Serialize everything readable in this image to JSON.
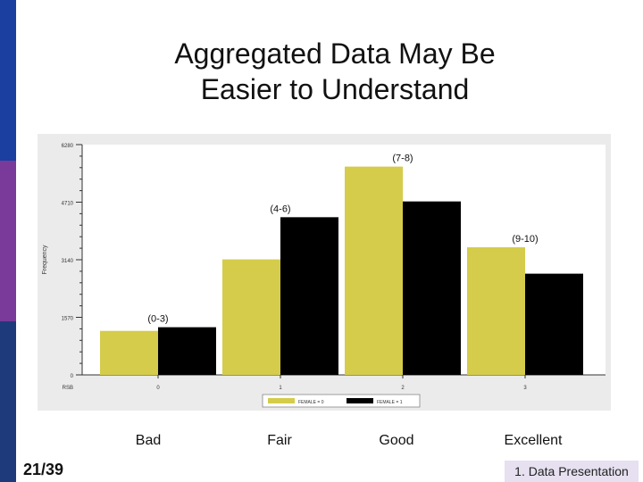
{
  "slide": {
    "title_line1": "Aggregated Data May Be",
    "title_line2": "Easier to Understand",
    "slide_number": "21/39",
    "footer_tag": "1. Data Presentation",
    "category_labels": [
      "Bad",
      "Fair",
      "Good",
      "Excellent"
    ]
  },
  "chart_data": {
    "type": "bar",
    "ylabel": "Frequency",
    "xlabel": "RSB",
    "ylim": [
      0,
      6280
    ],
    "yticks": [
      0,
      1570,
      3140,
      4710,
      6280
    ],
    "ytick_labels": [
      "0",
      "1570",
      "3140",
      "4710",
      "6280"
    ],
    "categories": [
      "0",
      "1",
      "2",
      "3"
    ],
    "group_labels": [
      "(0-3)",
      "(4-6)",
      "(7-8)",
      "(9-10)"
    ],
    "series": [
      {
        "name": "FEMALE = 0",
        "color": "#d4cc4a",
        "values": [
          1200,
          3150,
          5680,
          3480
        ]
      },
      {
        "name": "FEMALE = 1",
        "color": "#000000",
        "values": [
          1300,
          4300,
          4730,
          2760
        ]
      }
    ],
    "legend_position": "bottom",
    "grid": false
  }
}
